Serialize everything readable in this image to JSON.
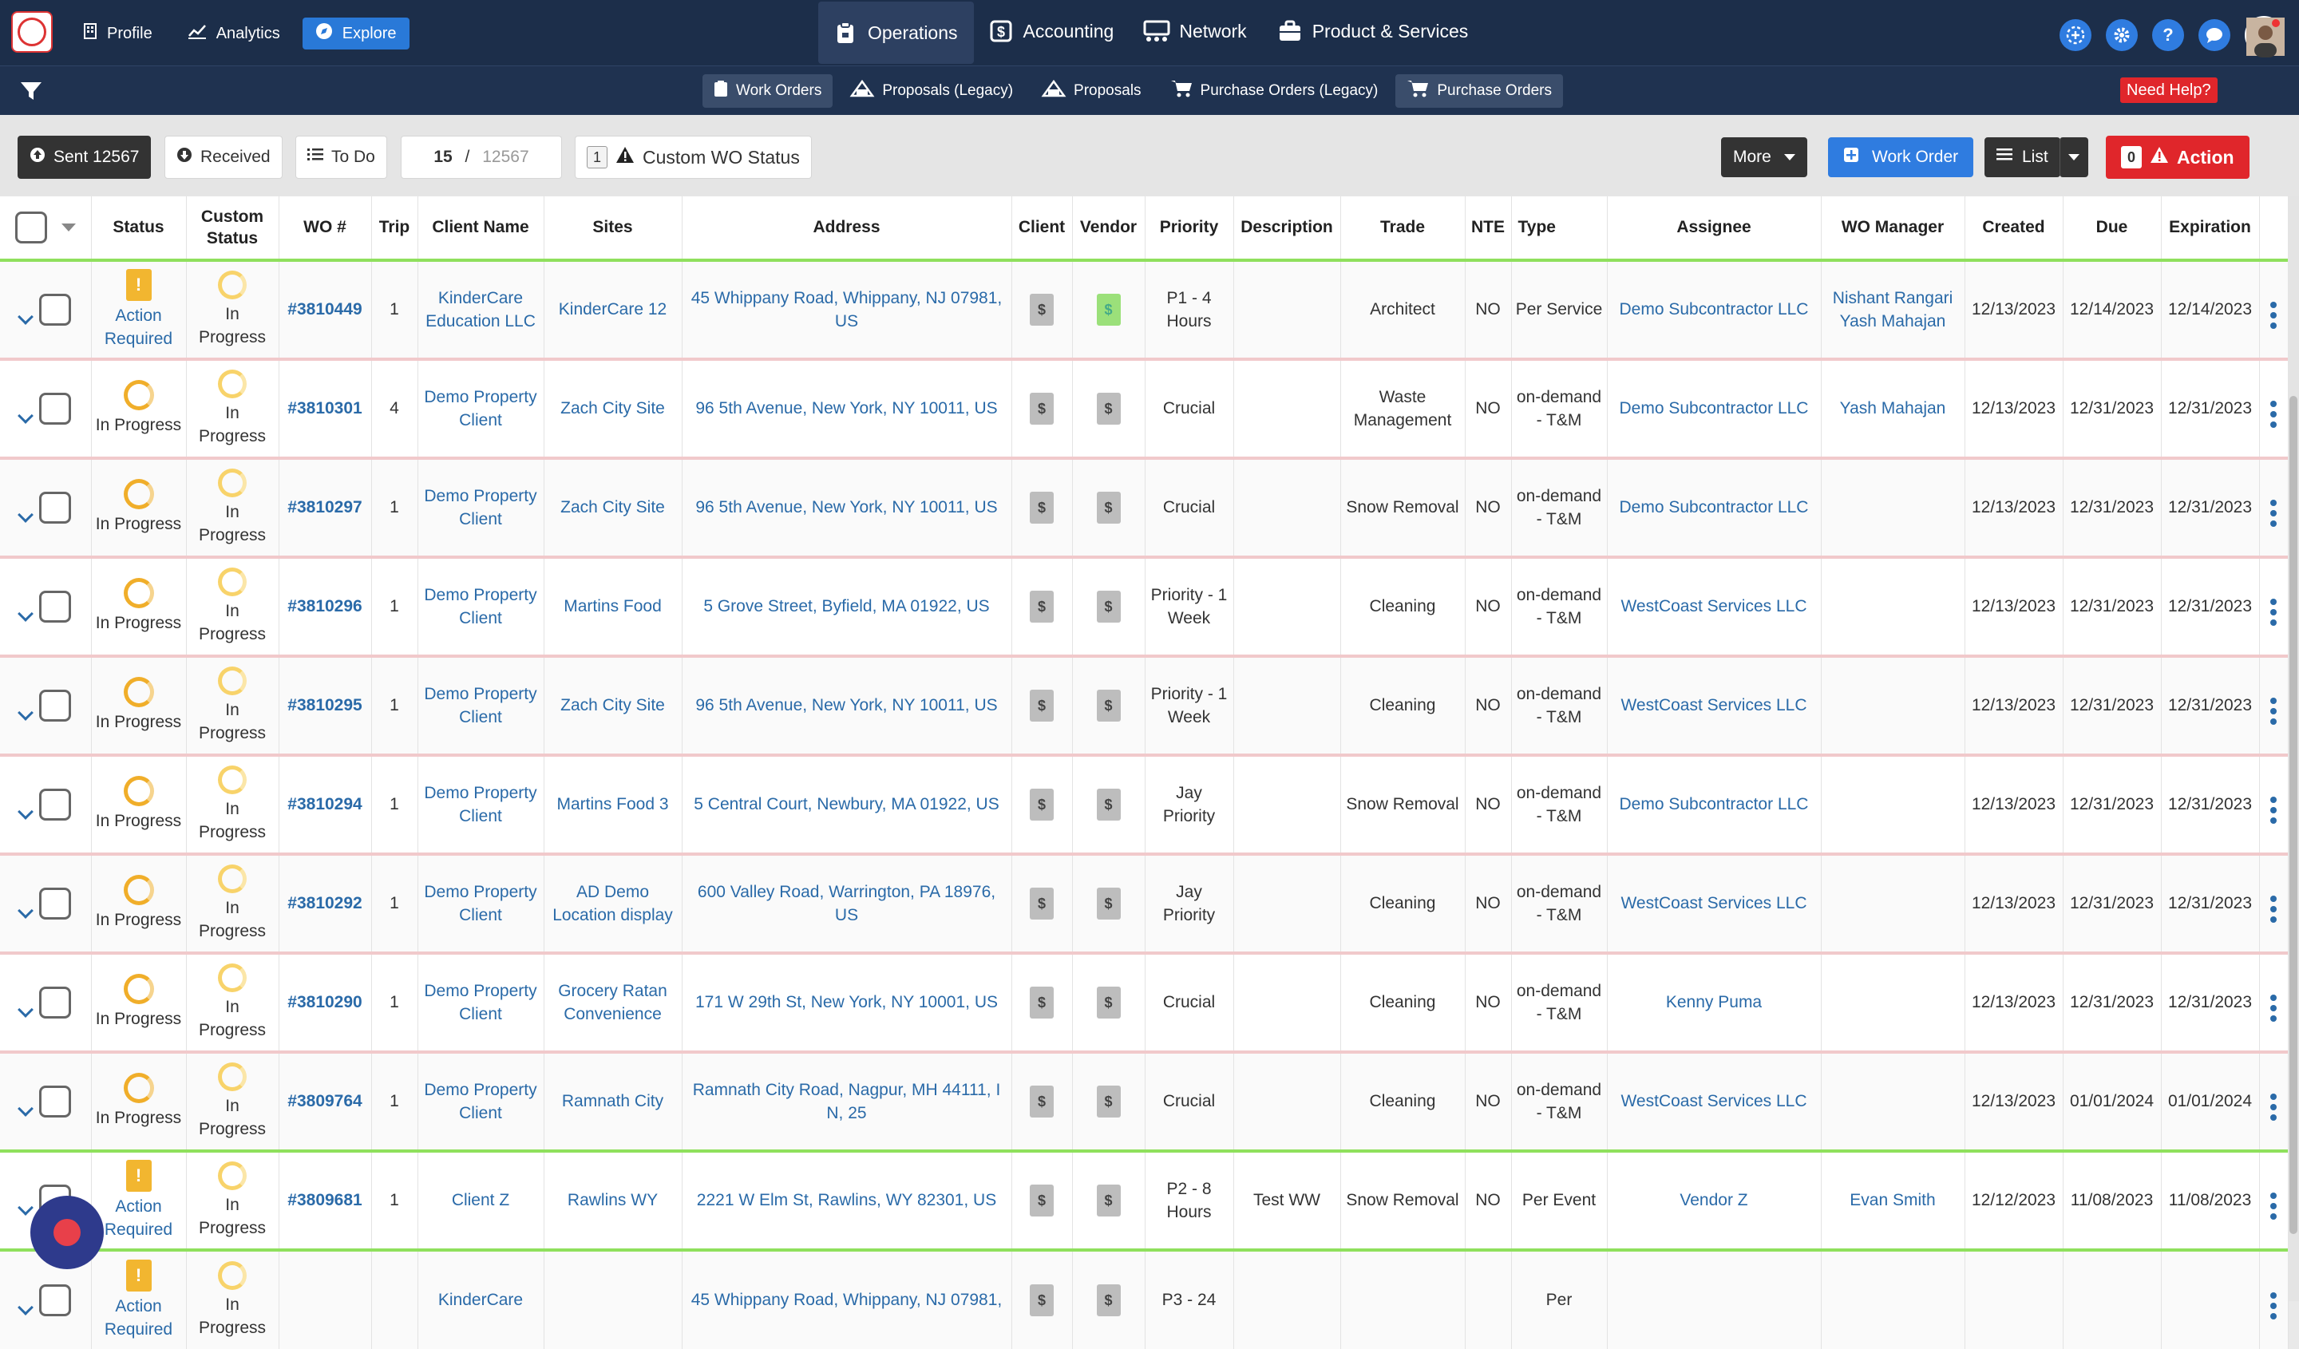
{
  "topnav": {
    "left": [
      {
        "label": "Profile",
        "icon": "building-icon"
      },
      {
        "label": "Analytics",
        "icon": "chart-line-icon"
      },
      {
        "label": "Explore",
        "icon": "compass-icon"
      }
    ],
    "main": [
      {
        "label": "Operations",
        "icon": "clipboard-icon"
      },
      {
        "label": "Accounting",
        "icon": "dollar-box-icon"
      },
      {
        "label": "Network",
        "icon": "network-icon"
      },
      {
        "label": "Product & Services",
        "icon": "briefcase-icon"
      }
    ],
    "right": [
      "plus-circle-icon",
      "gear-icon",
      "question-icon",
      "chat-icon"
    ]
  },
  "subnav": {
    "items": [
      "Work Orders",
      "Proposals (Legacy)",
      "Proposals",
      "Purchase Orders (Legacy)",
      "Purchase Orders"
    ],
    "help": "Need Help?"
  },
  "toolbar": {
    "sent": "Sent 12567",
    "received": "Received",
    "todo": "To Do",
    "page_current": "15",
    "page_sep": " / ",
    "page_total": "12567",
    "status_count": "1",
    "custom_status": "Custom WO Status",
    "more": "More",
    "work_order": "Work Order",
    "list": "List",
    "action_count": "0",
    "action": "Action"
  },
  "table": {
    "headers": [
      "Status",
      "Custom Status",
      "WO #",
      "Trip",
      "Client Name",
      "Sites",
      "Address",
      "Client",
      "Vendor",
      "Priority",
      "Description",
      "Trade",
      "NTE",
      "Type",
      "Assignee",
      "WO Manager",
      "Created",
      "Due",
      "Expiration"
    ],
    "rows": [
      {
        "status": "Action Required",
        "custom": "In Progress",
        "wo": "#3810449",
        "trip": "1",
        "client": "KinderCare Education LLC",
        "site": "KinderCare 12",
        "address": "45 Whippany Road, Whippany, NJ 07981, US",
        "priority": "P1 - 4 Hours",
        "desc": "",
        "trade": "Architect",
        "nte": "NO",
        "type": "Per Service",
        "assignee": "Demo Subcontractor LLC",
        "manager": "Nishant Rangari Yash Mahajan",
        "created": "12/13/2023",
        "due": "12/14/2023",
        "exp": "12/14/2023"
      },
      {
        "status": "In Progress",
        "custom": "In Progress",
        "wo": "#3810301",
        "trip": "4",
        "client": "Demo Property Client",
        "site": "Zach City Site",
        "address": "96 5th Avenue, New York, NY 10011, US",
        "priority": "Crucial",
        "desc": "",
        "trade": "Waste Management",
        "nte": "NO",
        "type": "on-demand - T&M",
        "assignee": "Demo Subcontractor LLC",
        "manager": "Yash Mahajan",
        "created": "12/13/2023",
        "due": "12/31/2023",
        "exp": "12/31/2023"
      },
      {
        "status": "In Progress",
        "custom": "In Progress",
        "wo": "#3810297",
        "trip": "1",
        "client": "Demo Property Client",
        "site": "Zach City Site",
        "address": "96 5th Avenue, New York, NY 10011, US",
        "priority": "Crucial",
        "desc": "",
        "trade": "Snow Removal",
        "nte": "NO",
        "type": "on-demand - T&M",
        "assignee": "Demo Subcontractor LLC",
        "manager": "",
        "created": "12/13/2023",
        "due": "12/31/2023",
        "exp": "12/31/2023"
      },
      {
        "status": "In Progress",
        "custom": "In Progress",
        "wo": "#3810296",
        "trip": "1",
        "client": "Demo Property Client",
        "site": "Martins Food",
        "address": "5 Grove Street, Byfield, MA 01922, US",
        "priority": "Priority - 1 Week",
        "desc": "",
        "trade": "Cleaning",
        "nte": "NO",
        "type": "on-demand - T&M",
        "assignee": "WestCoast Services LLC",
        "manager": "",
        "created": "12/13/2023",
        "due": "12/31/2023",
        "exp": "12/31/2023"
      },
      {
        "status": "In Progress",
        "custom": "In Progress",
        "wo": "#3810295",
        "trip": "1",
        "client": "Demo Property Client",
        "site": "Zach City Site",
        "address": "96 5th Avenue, New York, NY 10011, US",
        "priority": "Priority - 1 Week",
        "desc": "",
        "trade": "Cleaning",
        "nte": "NO",
        "type": "on-demand - T&M",
        "assignee": "WestCoast Services LLC",
        "manager": "",
        "created": "12/13/2023",
        "due": "12/31/2023",
        "exp": "12/31/2023"
      },
      {
        "status": "In Progress",
        "custom": "In Progress",
        "wo": "#3810294",
        "trip": "1",
        "client": "Demo Property Client",
        "site": "Martins Food 3",
        "address": "5 Central Court, Newbury, MA 01922, US",
        "priority": "Jay Priority",
        "desc": "",
        "trade": "Snow Removal",
        "nte": "NO",
        "type": "on-demand - T&M",
        "assignee": "Demo Subcontractor LLC",
        "manager": "",
        "created": "12/13/2023",
        "due": "12/31/2023",
        "exp": "12/31/2023"
      },
      {
        "status": "In Progress",
        "custom": "In Progress",
        "wo": "#3810292",
        "trip": "1",
        "client": "Demo Property Client",
        "site": "AD Demo Location display",
        "address": "600 Valley Road, Warrington, PA 18976, US",
        "priority": "Jay Priority",
        "desc": "",
        "trade": "Cleaning",
        "nte": "NO",
        "type": "on-demand - T&M",
        "assignee": "WestCoast Services LLC",
        "manager": "",
        "created": "12/13/2023",
        "due": "12/31/2023",
        "exp": "12/31/2023"
      },
      {
        "status": "In Progress",
        "custom": "In Progress",
        "wo": "#3810290",
        "trip": "1",
        "client": "Demo Property Client",
        "site": "Grocery Ratan Convenience",
        "address": "171 W 29th St, New York, NY 10001, US",
        "priority": "Crucial",
        "desc": "",
        "trade": "Cleaning",
        "nte": "NO",
        "type": "on-demand - T&M",
        "assignee": "Kenny Puma",
        "manager": "",
        "created": "12/13/2023",
        "due": "12/31/2023",
        "exp": "12/31/2023"
      },
      {
        "status": "In Progress",
        "custom": "In Progress",
        "wo": "#3809764",
        "trip": "1",
        "client": "Demo Property Client",
        "site": "Ramnath City",
        "address": "Ramnath City Road, Nagpur, MH 44111, I N, 25",
        "priority": "Crucial",
        "desc": "",
        "trade": "Cleaning",
        "nte": "NO",
        "type": "on-demand - T&M",
        "assignee": "WestCoast Services LLC",
        "manager": "",
        "created": "12/13/2023",
        "due": "01/01/2024",
        "exp": "01/01/2024"
      },
      {
        "status": "Action Required",
        "custom": "In Progress",
        "wo": "#3809681",
        "trip": "1",
        "client": "Client Z",
        "site": "Rawlins WY",
        "address": "2221 W Elm St, Rawlins, WY 82301, US",
        "priority": "P2 - 8 Hours",
        "desc": "Test WW",
        "trade": "Snow Removal",
        "nte": "NO",
        "type": "Per Event",
        "assignee": "Vendor Z",
        "manager": "Evan Smith",
        "created": "12/12/2023",
        "due": "11/08/2023",
        "exp": "11/08/2023"
      },
      {
        "status": "Action Required",
        "custom": "In Progress",
        "wo": "",
        "trip": "",
        "client": "KinderCare",
        "site": "",
        "address": "45 Whippany Road, Whippany, NJ 07981,",
        "priority": "P3 - 24",
        "desc": "",
        "trade": "",
        "nte": "",
        "type": "Per",
        "assignee": "",
        "manager": "",
        "created": "",
        "due": "",
        "exp": ""
      }
    ]
  },
  "colors": {
    "nav_bg": "#1c2e4a",
    "accent_blue": "#2f7ce0",
    "action_red": "#e0262b",
    "link": "#2a6aa8",
    "row_border_pink": "#f1c9cb",
    "row_border_green": "#8fe05d",
    "status_orange": "#f0ae2a"
  }
}
